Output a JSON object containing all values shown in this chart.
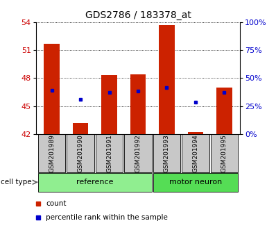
{
  "title": "GDS2786 / 183378_at",
  "samples": [
    "GSM201989",
    "GSM201990",
    "GSM201991",
    "GSM201992",
    "GSM201993",
    "GSM201994",
    "GSM201995"
  ],
  "groups": [
    "reference",
    "reference",
    "reference",
    "reference",
    "motor neuron",
    "motor neuron",
    "motor neuron"
  ],
  "bar_bottom": 42,
  "bar_tops": [
    51.7,
    43.2,
    48.3,
    48.4,
    53.7,
    42.2,
    47.0
  ],
  "blue_dots": [
    46.7,
    45.7,
    46.5,
    46.6,
    47.0,
    45.4,
    46.5
  ],
  "ylim_left": [
    42,
    54
  ],
  "yticks_left": [
    42,
    45,
    48,
    51,
    54
  ],
  "ylim_right": [
    0,
    100
  ],
  "yticks_right": [
    0,
    25,
    50,
    75,
    100
  ],
  "yticklabels_right": [
    "0%",
    "25%",
    "50%",
    "75%",
    "100%"
  ],
  "bar_color": "#CC2200",
  "dot_color": "#0000CC",
  "bar_width": 0.55,
  "reference_bg_light": "#C8F5C8",
  "reference_bg": "#90EE90",
  "motor_bg": "#55DD55",
  "sample_box_color": "#C8C8C8",
  "tick_color_left": "#CC0000",
  "tick_color_right": "#0000CC",
  "title_fontsize": 10,
  "tick_fontsize": 8,
  "sample_fontsize": 6.5,
  "group_fontsize": 8,
  "legend_fontsize": 7.5
}
